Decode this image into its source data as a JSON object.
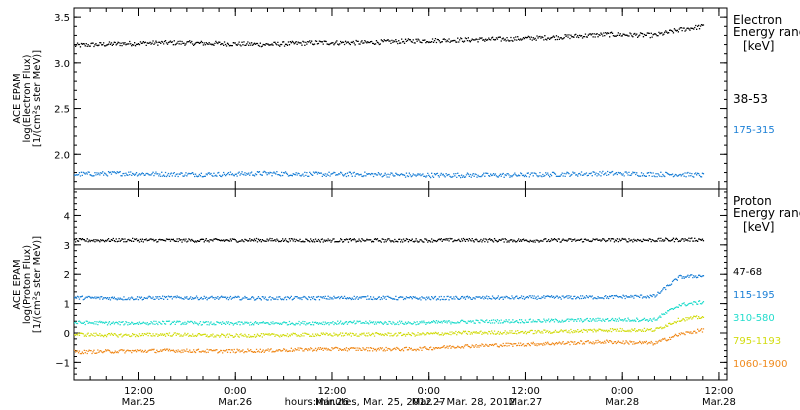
{
  "chart_data": [
    {
      "type": "scatter",
      "panel": "electron",
      "ylabel_lines": [
        "ACE EPAM",
        "log(Electron Flux)",
        "[1/(cm²s ster MeV)]"
      ],
      "ylim": [
        1.62,
        3.6
      ],
      "yticks": [
        2.0,
        2.5,
        3.0,
        3.5
      ],
      "ytick_labels": [
        "2.0",
        "2.5",
        "3.0",
        "3.5"
      ],
      "xlim_hours": [
        0,
        81
      ],
      "legend_title_lines": [
        "Electron",
        "Energy ranges",
        "[keV]"
      ],
      "series": [
        {
          "name": "38-53",
          "color": "#000000",
          "x": [
            0,
            6,
            12,
            18,
            24,
            30,
            36,
            42,
            48,
            54,
            60,
            66,
            72,
            75,
            78
          ],
          "y": [
            3.19,
            3.21,
            3.22,
            3.21,
            3.2,
            3.22,
            3.22,
            3.24,
            3.25,
            3.26,
            3.28,
            3.31,
            3.3,
            3.36,
            3.4
          ]
        },
        {
          "name": "175-315",
          "color": "#1a7fd6",
          "x": [
            0,
            6,
            12,
            18,
            24,
            30,
            36,
            42,
            48,
            54,
            60,
            66,
            72,
            75,
            78
          ],
          "y": [
            1.78,
            1.79,
            1.78,
            1.78,
            1.79,
            1.78,
            1.78,
            1.77,
            1.77,
            1.77,
            1.78,
            1.79,
            1.78,
            1.78,
            1.77
          ]
        }
      ]
    },
    {
      "type": "scatter",
      "panel": "proton",
      "ylabel_lines": [
        "ACE EPAM",
        "log(Proton Flux)",
        "[1/(cm²s ster MeV)]"
      ],
      "ylim": [
        -1.6,
        4.9
      ],
      "yticks": [
        -1,
        0,
        1,
        2,
        3,
        4
      ],
      "ytick_labels": [
        "−1",
        "0",
        "1",
        "2",
        "3",
        "4"
      ],
      "xlim_hours": [
        0,
        81
      ],
      "xticks_hours": [
        8,
        20,
        32,
        44,
        56,
        68,
        80
      ],
      "xtick_time": [
        "12:00",
        "0:00",
        "12:00",
        "0:00",
        "12:00",
        "0:00",
        "12:00"
      ],
      "xtick_date": [
        "Mar.25",
        "Mar.26",
        "Mar.26",
        "Mar.27",
        "Mar.27",
        "Mar.28",
        "Mar.28"
      ],
      "xlabel": "hours:minutes, Mar. 25, 2012 − Mar. 28, 2012",
      "legend_title_lines": [
        "Proton",
        "Energy ranges",
        "[keV]"
      ],
      "series": [
        {
          "name": "47-68",
          "color": "#000000",
          "x": [
            0,
            6,
            12,
            18,
            24,
            30,
            36,
            42,
            48,
            54,
            60,
            66,
            72,
            75,
            78
          ],
          "y": [
            3.15,
            3.16,
            3.15,
            3.15,
            3.16,
            3.15,
            3.15,
            3.15,
            3.16,
            3.15,
            3.15,
            3.16,
            3.16,
            3.17,
            3.18
          ]
        },
        {
          "name": "115-195",
          "color": "#1a7fd6",
          "x": [
            0,
            6,
            12,
            18,
            24,
            30,
            36,
            42,
            48,
            54,
            60,
            66,
            72,
            75,
            78
          ],
          "y": [
            1.2,
            1.18,
            1.2,
            1.19,
            1.18,
            1.19,
            1.2,
            1.18,
            1.19,
            1.2,
            1.21,
            1.22,
            1.25,
            1.9,
            1.95
          ]
        },
        {
          "name": "310-580",
          "color": "#22dccc",
          "x": [
            0,
            6,
            12,
            18,
            24,
            30,
            36,
            42,
            48,
            54,
            60,
            66,
            72,
            75,
            78
          ],
          "y": [
            0.35,
            0.33,
            0.35,
            0.32,
            0.33,
            0.34,
            0.35,
            0.34,
            0.38,
            0.4,
            0.42,
            0.45,
            0.45,
            0.95,
            1.05
          ]
        },
        {
          "name": "795-1193",
          "color": "#d2dc10",
          "x": [
            0,
            6,
            12,
            18,
            24,
            30,
            36,
            42,
            48,
            54,
            60,
            66,
            72,
            75,
            78
          ],
          "y": [
            -0.05,
            -0.08,
            -0.05,
            -0.1,
            -0.08,
            -0.06,
            -0.05,
            -0.05,
            0.0,
            0.02,
            0.05,
            0.1,
            0.1,
            0.45,
            0.55
          ]
        },
        {
          "name": "1060-1900",
          "color": "#f08a1c",
          "x": [
            0,
            6,
            12,
            18,
            24,
            30,
            36,
            42,
            48,
            54,
            60,
            66,
            72,
            75,
            78
          ],
          "y": [
            -0.65,
            -0.62,
            -0.6,
            -0.62,
            -0.6,
            -0.55,
            -0.55,
            -0.55,
            -0.45,
            -0.4,
            -0.35,
            -0.3,
            -0.35,
            -0.05,
            0.1
          ]
        }
      ]
    }
  ]
}
